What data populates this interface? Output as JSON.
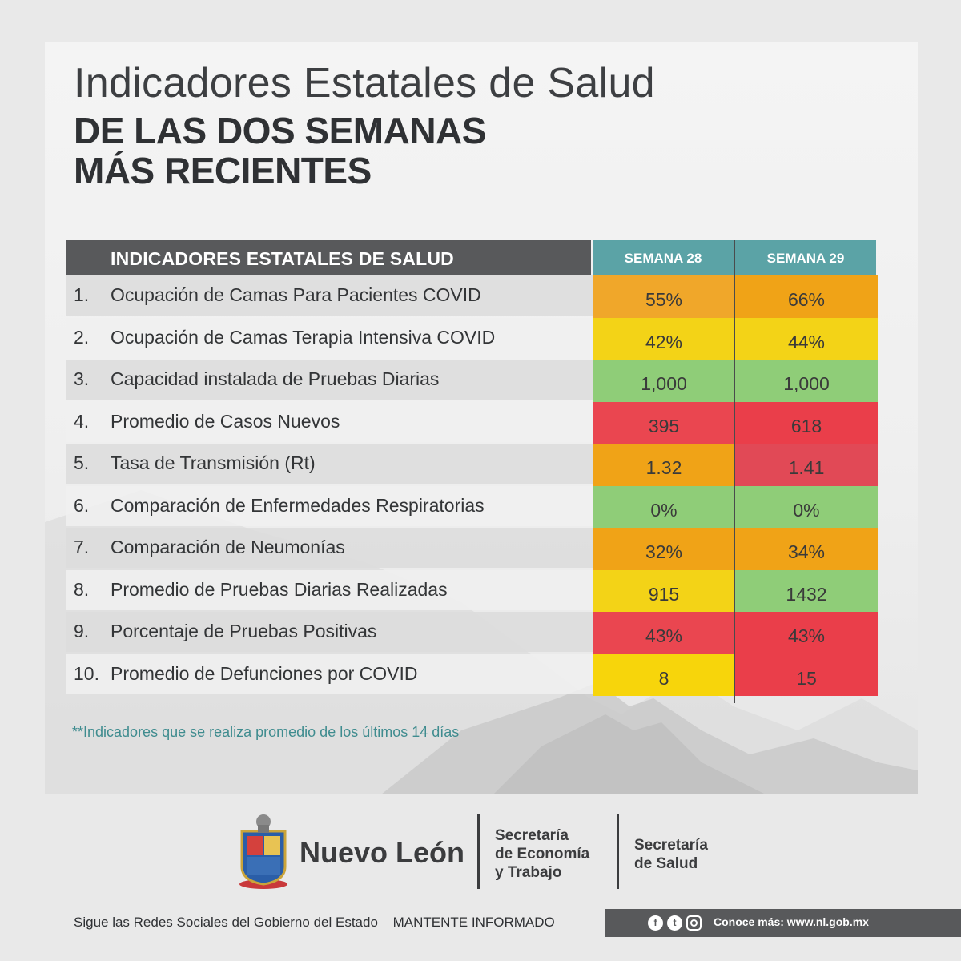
{
  "header": {
    "title_line1": "Indicadores Estatales de Salud",
    "title_line2": "DE LAS DOS SEMANAS",
    "title_line3": "MÁS RECIENTES"
  },
  "table": {
    "header_label": "INDICADORES ESTATALES DE SALUD",
    "week_1": "SEMANA 28",
    "week_2": "SEMANA 29",
    "rows": [
      {
        "num": "1.",
        "label": "Ocupación de Camas Para Pacientes COVID",
        "w1": "55%",
        "w2": "66%",
        "w1_color": "#f0a72a",
        "w2_color": "#f0a317"
      },
      {
        "num": "2.",
        "label": "Ocupación de Camas Terapia Intensiva COVID",
        "w1": "42%",
        "w2": "44%",
        "w1_color": "#f3d317",
        "w2_color": "#f3d317"
      },
      {
        "num": "3.",
        "label": "Capacidad instalada de Pruebas Diarias",
        "w1": "1,000",
        "w2": "1,000",
        "w1_color": "#8fcd78",
        "w2_color": "#8fcd78"
      },
      {
        "num": "4.",
        "label": "Promedio de Casos Nuevos",
        "w1": "395",
        "w2": "618",
        "w1_color": "#ea4650",
        "w2_color": "#ea3e4a"
      },
      {
        "num": "5.",
        "label": "Tasa de Transmisión (Rt)",
        "w1": "1.32",
        "w2": "1.41",
        "w1_color": "#f0a317",
        "w2_color": "#e14956"
      },
      {
        "num": "6.",
        "label": "Comparación de Enfermedades Respiratorias",
        "w1": "0%",
        "w2": "0%",
        "w1_color": "#8fcd78",
        "w2_color": "#8fcd78"
      },
      {
        "num": "7.",
        "label": "Comparación de Neumonías",
        "w1": "32%",
        "w2": "34%",
        "w1_color": "#f0a317",
        "w2_color": "#f0a317"
      },
      {
        "num": "8.",
        "label": "Promedio de Pruebas Diarias Realizadas",
        "w1": "915",
        "w2": "1432",
        "w1_color": "#f3d317",
        "w2_color": "#8fcd78"
      },
      {
        "num": "9.",
        "label": "Porcentaje de Pruebas Positivas",
        "w1": "43%",
        "w2": "43%",
        "w1_color": "#ea4650",
        "w2_color": "#ea3e4a"
      },
      {
        "num": "10.",
        "label": "Promedio de Defunciones por COVID",
        "w1": "8",
        "w2": "15",
        "w1_color": "#f7d50b",
        "w2_color": "#ea3e4a"
      }
    ]
  },
  "note": "**Indicadores que se realiza promedio de los últimos 14 días",
  "footer": {
    "state_name": "Nuevo León",
    "dept1": [
      "Secretaría",
      "de Economía",
      "y Trabajo"
    ],
    "dept2": [
      "Secretaría",
      "de Salud"
    ],
    "social_text": "Sigue las Redes Sociales del Gobierno del Estado",
    "stay_informed": "MANTENTE INFORMADO",
    "more_info": "Conoce más: www.nl.gob.mx",
    "icons": [
      "facebook-icon",
      "twitter-icon",
      "instagram-icon"
    ]
  }
}
